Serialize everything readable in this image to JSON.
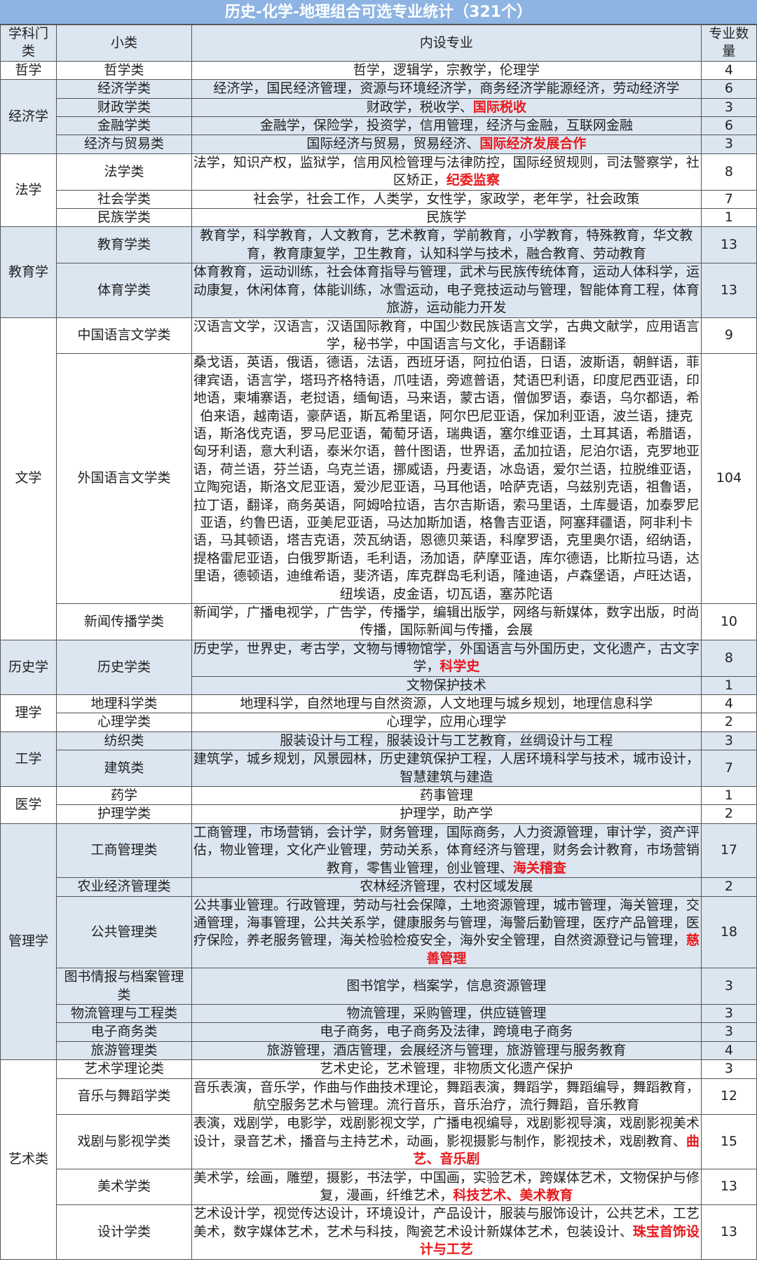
{
  "title": "历史-化学-地理组合可选专业统计（321个）",
  "headers": [
    "学科门类",
    "小类",
    "内设专业",
    "专业数量"
  ],
  "colors": {
    "title_bg": "#8db4e2",
    "band_blue": "#dce6f1",
    "highlight_red": "#e8181c"
  },
  "groups": [
    {
      "category": "哲学",
      "band": "white",
      "rows": [
        {
          "sub": "哲学类",
          "majors": "哲学，逻辑学，宗教学，伦理学",
          "red": "",
          "count": "4"
        }
      ]
    },
    {
      "category": "经济学",
      "band": "blue",
      "rows": [
        {
          "sub": "经济学类",
          "majors": "经济学，国民经济管理，资源与环境经济学，商务经济学能源经济，劳动经济学",
          "red": "",
          "count": "6"
        },
        {
          "sub": "财政学类",
          "majors": "财政学，税收学、",
          "red": "国际税收",
          "count": "3"
        },
        {
          "sub": "金融学类",
          "majors": "金融学，保险学，投资学，信用管理，经济与金融，互联网金融",
          "red": "",
          "count": "6"
        },
        {
          "sub": "经济与贸易类",
          "majors": "国际经济与贸易，贸易经济、",
          "red": "国际经济发展合作",
          "count": "3"
        }
      ]
    },
    {
      "category": "法学",
      "band": "white",
      "rows": [
        {
          "sub": "法学类",
          "majors": "法学，知识产权，监狱学，信用风检管理与法律防控，国际经贸规则，司法警察学，社区矫正，",
          "red": "纪委监察",
          "count": "8"
        },
        {
          "sub": "社会学类",
          "majors": "社会学，社会工作，人类学，女性学，家政学，老年学，社会政策",
          "red": "",
          "count": "7"
        },
        {
          "sub": "民族学类",
          "majors": "民族学",
          "red": "",
          "count": "1"
        }
      ]
    },
    {
      "category": "教育学",
      "band": "blue",
      "rows": [
        {
          "sub": "教育学类",
          "majors": "教育学，科学教育，人文教育，艺术教育，学前教育，小学教育，特殊教育，华文教育，教育康复学，卫生教育，认知科学与技术，融合教育、劳动教育",
          "red": "",
          "count": "13"
        },
        {
          "sub": "体育学类",
          "majors": "体育教育，运动训练，社会体育指导与管理，武术与民族传统体育，运动人体科学，运动康复，休闲体育，体能训练，冰雪运动，电子竞技运动与管理，智能体育工程，体育旅游，运动能力开发",
          "red": "",
          "count": "13"
        }
      ]
    },
    {
      "category": "文学",
      "band": "white",
      "rows": [
        {
          "sub": "中国语言文学类",
          "majors": "汉语言文学，汉语言，汉语国际教育，中国少数民族语言文学，古典文献学，应用语言学，秘书学，中国语言与文化，手语翻译",
          "red": "",
          "count": "9"
        },
        {
          "sub": "外国语言文学类",
          "majors": "桑戈语，英语，俄语，德语，法语，西班牙语，阿拉伯语，日语，波斯语，朝鲜语，菲律宾语，语言学，塔玛齐格特语，爪哇语，旁遮普语，梵语巴利语，印度尼西亚语，印地语，柬埔寨语，老挝语，缅甸语，马来语，蒙古语，僧伽罗语，泰语，乌尔都语，希伯来语，越南语，豪萨语，斯瓦希里语，阿尔巴尼亚语，保加利亚语，波兰语，捷克语，斯洛伐克语，罗马尼亚语，葡萄牙语，瑞典语，塞尔维亚语，土耳其语，希腊语，匈牙利语，意大利语，泰米尔语，普什图语，世界语，孟加拉语，尼泊尔语，克罗地亚语，荷兰语，芬兰语，乌克兰语，挪威语，丹麦语，冰岛语，爱尔兰语，拉脱维亚语，立陶宛语，斯洛文尼亚语，爱沙尼亚语，马耳他语，哈萨克语，乌兹别克语，祖鲁语，拉丁语，翻译，商务英语，阿姆哈拉语，吉尔吉斯语，索马里语，土库曼语，加泰罗尼亚语，约鲁巴语，亚美尼亚语，马达加斯加语，格鲁吉亚语，阿塞拜疆语，阿非利卡语，马其顿语，塔吉克语，茨瓦纳语，恩德贝莱语，科摩罗语，克里奥尔语，绍纳语，提格雷尼亚语，白俄罗斯语，毛利语，汤加语，萨摩亚语，库尔德语，比斯拉马语，达里语，德顿语，迪维希语，斐济语，库克群岛毛利语，隆迪语，卢森堡语，卢旺达语，纽埃语，皮金语，切瓦语，塞苏陀语",
          "red": "",
          "count": "104"
        },
        {
          "sub": "新闻传播学类",
          "majors": "新闻学，广播电视学，广告学，传播学，编辑出版学，网络与新媒体，数字出版，时尚传播，国际新闻与传播，会展",
          "red": "",
          "count": "10"
        }
      ]
    },
    {
      "category": "历史学",
      "band": "blue",
      "rows": [
        {
          "sub": "历史学类",
          "subspan": 2,
          "majors": "历史学，世界史，考古学，文物与博物馆学，外国语言与外国历史，文化遗产，古文字学，",
          "red": "科学史",
          "count": "8"
        },
        {
          "sub": null,
          "majors": "文物保护技术",
          "red": "",
          "count": "1"
        }
      ]
    },
    {
      "category": "理学",
      "band": "white",
      "rows": [
        {
          "sub": "地理科学类",
          "majors": "地理科学，自然地理与自然资源，人文地理与城乡规划，地理信息科学",
          "red": "",
          "count": "4"
        },
        {
          "sub": "心理学类",
          "majors": "心理学，应用心理学",
          "red": "",
          "count": "2"
        }
      ]
    },
    {
      "category": "工学",
      "band": "blue",
      "rows": [
        {
          "sub": "纺织类",
          "majors": "服装设计与工程，服装设计与工艺教育，丝绸设计与工程",
          "red": "",
          "count": "3"
        },
        {
          "sub": "建筑类",
          "majors": "建筑学，城乡规划，风景园林，历史建筑保护工程，人居环境科学与技术，城市设计，智慧建筑与建造",
          "red": "",
          "count": "7"
        }
      ]
    },
    {
      "category": "医学",
      "band": "white",
      "rows": [
        {
          "sub": "药学",
          "majors": "药事管理",
          "red": "",
          "count": "1"
        },
        {
          "sub": "护理学类",
          "majors": "护理学，助产学",
          "red": "",
          "count": "2"
        }
      ]
    },
    {
      "category": "管理学",
      "band": "blue",
      "rows": [
        {
          "sub": "工商管理类",
          "majors": "工商管理，市场营销，会计学，财务管理，国际商务，人力资源管理，审计学，资产评估，物业管理，文化产业管理，劳动关系，体育经济与管理，财务会计教育，市场营销教育，零售业管理，创业管理、",
          "red": "海关稽查",
          "count": "17"
        },
        {
          "sub": "农业经济管理类",
          "majors": "农林经济管理，农村区域发展",
          "red": "",
          "count": "2"
        },
        {
          "sub": "公共管理类",
          "majors": "公共事业管理。行政管理，劳动与社会保障，土地资源管理，城市管理，海关管理，交通管理，海事管理，公共关系学，健康服务与管理，海警后勤管理，医疗产品管理，医疗保险，养老服务管理，海关检验检疫安全，海外安全管理，自然资源登记与管理，",
          "red": "慈善管理",
          "count": "18"
        },
        {
          "sub": "图书情报与档案管理类",
          "majors": "图书馆学，档案学，信息资源管理",
          "red": "",
          "count": "3"
        },
        {
          "sub": "物流管理与工程类",
          "majors": "物流管理，采购管理，供应链管理",
          "red": "",
          "count": "3"
        },
        {
          "sub": "电子商务类",
          "majors": "电子商务，电子商务及法律，跨境电子商务",
          "red": "",
          "count": "3"
        },
        {
          "sub": "旅游管理类",
          "majors": "旅游管理，酒店管理，会展经济与管理，旅游管理与服务教育",
          "red": "",
          "count": "4"
        }
      ]
    },
    {
      "category": "艺术类",
      "band": "white",
      "rows": [
        {
          "sub": "艺术学理论类",
          "majors": "艺术史论，艺术管理，非物质文化遗产保护",
          "red": "",
          "count": "3"
        },
        {
          "sub": "音乐与舞蹈学类",
          "majors": "音乐表演，音乐学，作曲与作曲技术理论，舞蹈表演，舞蹈学，舞蹈编导，舞蹈教育，航空服务艺术与管理。流行音乐，音乐治疗，流行舞蹈，音乐教育",
          "red": "",
          "count": "12"
        },
        {
          "sub": "戏剧与影视学类",
          "majors": "表演，戏剧学，电影学，戏剧影视文学，广播电视编导，戏剧影视导演，戏剧影视美术设计，录音艺术，播音与主持艺术，动画，影视摄影与制作，影视技术，戏剧教育、",
          "red": "曲艺、音乐剧",
          "count": "15"
        },
        {
          "sub": "美术学类",
          "majors": "美术学，绘画，雕塑，摄影，书法学，中国画，实验艺术，跨媒体艺术，文物保护与修复，漫画，纤维艺术，",
          "red": "科技艺术、美术教育",
          "count": "13"
        },
        {
          "sub": "设计学类",
          "majors": "艺术设计学，视觉传达设计，环境设计，产品设计，服装与服饰设计，公共艺术，工艺美术，数字媒体艺术，艺术与科技，陶瓷艺术设计新媒体艺术，包装设计、",
          "red": "珠宝首饰设计与工艺",
          "count": "13"
        }
      ]
    }
  ]
}
